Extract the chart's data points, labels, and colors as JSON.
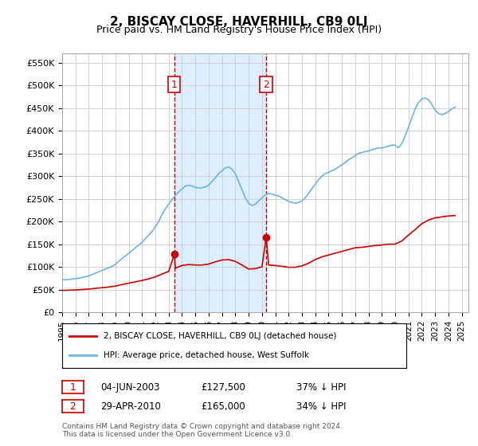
{
  "title": "2, BISCAY CLOSE, HAVERHILL, CB9 0LJ",
  "subtitle": "Price paid vs. HM Land Registry's House Price Index (HPI)",
  "ylabel_ticks": [
    "£0",
    "£50K",
    "£100K",
    "£150K",
    "£200K",
    "£250K",
    "£300K",
    "£350K",
    "£400K",
    "£450K",
    "£500K",
    "£550K"
  ],
  "ytick_vals": [
    0,
    50000,
    100000,
    150000,
    200000,
    250000,
    300000,
    350000,
    400000,
    450000,
    500000,
    550000
  ],
  "ylim": [
    0,
    570000
  ],
  "xlim_start": 1995.0,
  "xlim_end": 2025.5,
  "transaction1": {
    "year": 2003.42,
    "price": 127500,
    "label": "1"
  },
  "transaction2": {
    "year": 2010.32,
    "price": 165000,
    "label": "2"
  },
  "legend_line1": "2, BISCAY CLOSE, HAVERHILL, CB9 0LJ (detached house)",
  "legend_line2": "HPI: Average price, detached house, West Suffolk",
  "table_row1": "1     04-JUN-2003          £127,500          37% ↓ HPI",
  "table_row2": "2     29-APR-2010          £165,000          34% ↓ HPI",
  "footer": "Contains HM Land Registry data © Crown copyright and database right 2024.\nThis data is licensed under the Open Government Licence v3.0.",
  "hpi_color": "#6ab4e8",
  "price_color": "#cc0000",
  "marker_color": "#cc0000",
  "vline_color": "#cc0000",
  "highlight_color": "#ddeeff",
  "transaction_label_color": "#cc0000",
  "grid_color": "#cccccc",
  "background_color": "#ffffff",
  "hpi_data_x": [
    1995.0,
    1995.25,
    1995.5,
    1995.75,
    1996.0,
    1996.25,
    1996.5,
    1996.75,
    1997.0,
    1997.25,
    1997.5,
    1997.75,
    1998.0,
    1998.25,
    1998.5,
    1998.75,
    1999.0,
    1999.25,
    1999.5,
    1999.75,
    2000.0,
    2000.25,
    2000.5,
    2000.75,
    2001.0,
    2001.25,
    2001.5,
    2001.75,
    2002.0,
    2002.25,
    2002.5,
    2002.75,
    2003.0,
    2003.25,
    2003.5,
    2003.75,
    2004.0,
    2004.25,
    2004.5,
    2004.75,
    2005.0,
    2005.25,
    2005.5,
    2005.75,
    2006.0,
    2006.25,
    2006.5,
    2006.75,
    2007.0,
    2007.25,
    2007.5,
    2007.75,
    2008.0,
    2008.25,
    2008.5,
    2008.75,
    2009.0,
    2009.25,
    2009.5,
    2009.75,
    2010.0,
    2010.25,
    2010.5,
    2010.75,
    2011.0,
    2011.25,
    2011.5,
    2011.75,
    2012.0,
    2012.25,
    2012.5,
    2012.75,
    2013.0,
    2013.25,
    2013.5,
    2013.75,
    2014.0,
    2014.25,
    2014.5,
    2014.75,
    2015.0,
    2015.25,
    2015.5,
    2015.75,
    2016.0,
    2016.25,
    2016.5,
    2016.75,
    2017.0,
    2017.25,
    2017.5,
    2017.75,
    2018.0,
    2018.25,
    2018.5,
    2018.75,
    2019.0,
    2019.25,
    2019.5,
    2019.75,
    2020.0,
    2020.25,
    2020.5,
    2020.75,
    2021.0,
    2021.25,
    2021.5,
    2021.75,
    2022.0,
    2022.25,
    2022.5,
    2022.75,
    2023.0,
    2023.25,
    2023.5,
    2023.75,
    2024.0,
    2024.25,
    2024.5
  ],
  "hpi_data_y": [
    72000,
    71500,
    72000,
    73000,
    74000,
    75000,
    76500,
    78000,
    80000,
    83000,
    86000,
    89000,
    92000,
    95000,
    98000,
    101000,
    106000,
    112000,
    118000,
    124000,
    130000,
    136000,
    142000,
    148000,
    154000,
    162000,
    170000,
    178000,
    188000,
    200000,
    215000,
    228000,
    238000,
    248000,
    258000,
    265000,
    272000,
    278000,
    280000,
    278000,
    275000,
    274000,
    274000,
    276000,
    280000,
    288000,
    296000,
    305000,
    312000,
    318000,
    320000,
    315000,
    305000,
    288000,
    270000,
    252000,
    240000,
    235000,
    238000,
    245000,
    252000,
    258000,
    262000,
    260000,
    258000,
    256000,
    252000,
    248000,
    244000,
    242000,
    240000,
    242000,
    245000,
    252000,
    262000,
    272000,
    282000,
    292000,
    300000,
    305000,
    308000,
    312000,
    315000,
    320000,
    325000,
    330000,
    336000,
    340000,
    345000,
    350000,
    352000,
    354000,
    355000,
    358000,
    360000,
    362000,
    362000,
    364000,
    366000,
    368000,
    368000,
    362000,
    372000,
    388000,
    408000,
    428000,
    448000,
    462000,
    470000,
    472000,
    468000,
    458000,
    445000,
    438000,
    435000,
    438000,
    442000,
    448000,
    452000
  ],
  "price_data_x": [
    1995.0,
    1995.5,
    1996.0,
    1996.5,
    1997.0,
    1997.5,
    1998.0,
    1998.5,
    1999.0,
    1999.5,
    2000.0,
    2000.5,
    2001.0,
    2001.5,
    2002.0,
    2002.5,
    2003.0,
    2003.42,
    2003.5,
    2004.0,
    2004.5,
    2005.0,
    2005.5,
    2006.0,
    2006.5,
    2007.0,
    2007.5,
    2008.0,
    2008.5,
    2009.0,
    2009.5,
    2010.0,
    2010.32,
    2010.5,
    2011.0,
    2011.5,
    2012.0,
    2012.5,
    2013.0,
    2013.5,
    2014.0,
    2014.5,
    2015.0,
    2015.5,
    2016.0,
    2016.5,
    2017.0,
    2017.5,
    2018.0,
    2018.5,
    2019.0,
    2019.5,
    2020.0,
    2020.5,
    2021.0,
    2021.5,
    2022.0,
    2022.5,
    2023.0,
    2023.5,
    2024.0,
    2024.5
  ],
  "price_data_y": [
    48000,
    48500,
    49000,
    50000,
    51000,
    52500,
    54000,
    55500,
    57500,
    61000,
    64000,
    67000,
    70000,
    73500,
    78000,
    84000,
    90000,
    127500,
    97000,
    103000,
    105000,
    104000,
    104000,
    106000,
    111000,
    115000,
    116000,
    112000,
    104000,
    95000,
    96000,
    100000,
    165000,
    104000,
    103000,
    101000,
    99000,
    99000,
    102000,
    108000,
    116000,
    122000,
    126000,
    130000,
    134000,
    138000,
    142000,
    143000,
    145000,
    147000,
    148000,
    150000,
    150000,
    157000,
    170000,
    182000,
    195000,
    203000,
    208000,
    210000,
    212000,
    213000
  ]
}
